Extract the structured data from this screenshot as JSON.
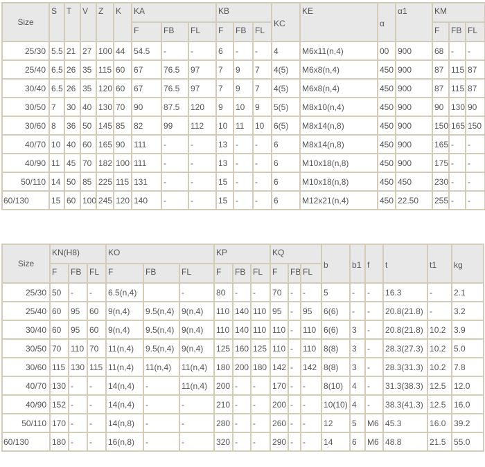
{
  "table1": {
    "header_top": [
      {
        "label": "Size",
        "rowspan": 2,
        "cls": "sz"
      },
      {
        "label": "S",
        "rowspan": 2
      },
      {
        "label": "T",
        "rowspan": 2
      },
      {
        "label": "V",
        "rowspan": 2
      },
      {
        "label": "Z",
        "rowspan": 2
      },
      {
        "label": "K",
        "rowspan": 2
      },
      {
        "label": "KA",
        "colspan": 3
      },
      {
        "label": "KB",
        "colspan": 3
      },
      {
        "label": "KC",
        "rowspan": 2,
        "cls": "mid"
      },
      {
        "label": "KE",
        "rowspan": 2
      },
      {
        "label": "α",
        "rowspan": 2,
        "cls": "mid"
      },
      {
        "label": "α1",
        "rowspan": 2
      },
      {
        "label": "KM",
        "colspan": 3
      }
    ],
    "header_sub": [
      "F",
      "FB",
      "FL",
      "F",
      "FB",
      "FL",
      "F",
      "FB",
      "FL"
    ],
    "rows": [
      [
        "25/30",
        "5.5",
        "21",
        "27",
        "100",
        "44",
        "54.5",
        "-",
        "-",
        "6",
        "-",
        "-",
        "4",
        "M6x11(n,4)",
        "00",
        "900",
        "68",
        "-",
        "-"
      ],
      [
        "25/40",
        "6.5",
        "26",
        "35",
        "115",
        "60",
        "67",
        "76.5",
        "97",
        "7",
        "9",
        "7",
        "4(5)",
        "M6x8(n,4)",
        "450",
        "900",
        "87",
        "115",
        "87"
      ],
      [
        "30/40",
        "6.5",
        "26",
        "35",
        "120",
        "60",
        "67",
        "76.5",
        "97",
        "7",
        "9",
        "7",
        "4(5)",
        "M6x8(n,4)",
        "450",
        "900",
        "87",
        "115",
        "87"
      ],
      [
        "30/50",
        "7",
        "30",
        "40",
        "130",
        "70",
        "90",
        "87.5",
        "120",
        "9",
        "10",
        "9",
        "5(5)",
        "M8x10(n,4)",
        "450",
        "900",
        "90",
        "130",
        "90"
      ],
      [
        "30/60",
        "8",
        "36",
        "50",
        "145",
        "85",
        "82",
        "99",
        "112",
        "10",
        "11",
        "10",
        "6(5)",
        "M8x14(n,8)",
        "450",
        "900",
        "150",
        "165",
        "150"
      ],
      [
        "40/70",
        "10",
        "40",
        "60",
        "165",
        "90",
        "111",
        "-",
        "-",
        "13",
        "-",
        "-",
        "6",
        "M8x14(n,8)",
        "450",
        "900",
        "165",
        "-",
        "-"
      ],
      [
        "40/90",
        "11",
        "45",
        "70",
        "182",
        "100",
        "111",
        "-",
        "-",
        "13",
        "-",
        "-",
        "6",
        "M10x18(n,8)",
        "450",
        "900",
        "175",
        "-",
        "-"
      ],
      [
        "50/110",
        "14",
        "50",
        "85",
        "225",
        "115",
        "131",
        "-",
        "-",
        "15",
        "-",
        "-",
        "6",
        "M10x18(n,8)",
        "450",
        "450",
        "230",
        "-",
        "-"
      ],
      [
        "60/130",
        "15",
        "60",
        "100",
        "245",
        "120",
        "140",
        "-",
        "-",
        "15",
        "-",
        "-",
        "6",
        "M12x21(n,4)",
        "450",
        "22.50",
        "255",
        "-",
        "-"
      ]
    ]
  },
  "table2": {
    "header_top": [
      {
        "label": "Size",
        "rowspan": 2,
        "cls": "sz"
      },
      {
        "label": "KN(H8)",
        "colspan": 3
      },
      {
        "label": "KO",
        "colspan": 3
      },
      {
        "label": "KP",
        "colspan": 3
      },
      {
        "label": "KQ",
        "colspan": 3
      },
      {
        "label": "b",
        "rowspan": 2,
        "cls": "mid"
      },
      {
        "label": "b1",
        "rowspan": 2,
        "cls": "mid"
      },
      {
        "label": "f",
        "rowspan": 2,
        "cls": "mid"
      },
      {
        "label": "t",
        "rowspan": 2,
        "cls": "mid"
      },
      {
        "label": "t1",
        "rowspan": 2,
        "cls": "mid"
      },
      {
        "label": "kg",
        "rowspan": 2,
        "cls": "mid"
      }
    ],
    "header_sub": [
      "F",
      "FB",
      "FL",
      "F",
      "FB",
      "FL",
      "F",
      "FB",
      "FL",
      "F",
      "FB",
      "FL"
    ],
    "rows": [
      [
        "25/30",
        "50",
        "-",
        "-",
        "6.5(n,4)",
        "",
        "-",
        "80",
        "-",
        "-",
        "70",
        "-",
        "-",
        "5",
        "-",
        "-",
        "16.3",
        "-",
        "2.1"
      ],
      [
        "25/40",
        "60",
        "95",
        "60",
        "9(n,4)",
        "9.5(n,4)",
        "9(n,4)",
        "110",
        "140",
        "110",
        "95",
        "-",
        "95",
        "6(6)",
        "-",
        "-",
        "20.8(21.8)",
        "-",
        "3.2"
      ],
      [
        "30/40",
        "60",
        "95",
        "60",
        "9(n,4)",
        "9.5(n,4)",
        "9(n,4)",
        "110",
        "140",
        "110",
        "110",
        "-",
        "110",
        "6(6)",
        "3",
        "-",
        "20.8(21.8)",
        "10.2",
        "3.9"
      ],
      [
        "30/50",
        "70",
        "110",
        "70",
        "11(n,4)",
        "9.5(n,4)",
        "9(n,4)",
        "125",
        "160",
        "125",
        "110",
        "-",
        "110",
        "8(8)",
        "3",
        "-",
        "28.3(27.3)",
        "10.2",
        "5.0"
      ],
      [
        "30/60",
        "115",
        "130",
        "115",
        "11(n,4)",
        "11(n,4)",
        "11(n,4)",
        "180",
        "200",
        "180",
        "142",
        "-",
        "142",
        "8(8)",
        "3",
        "-",
        "28.3(31.3)",
        "10.2",
        "7.8"
      ],
      [
        "40/70",
        "130",
        "-",
        "-",
        "14(n,4)",
        "-",
        "11(n,4)",
        "200",
        "-",
        "-",
        "170",
        "-",
        "-",
        "8(10)",
        "4",
        "-",
        "31.3(38.3)",
        "12.5",
        "12.0"
      ],
      [
        "40/90",
        "152",
        "-",
        "-",
        "14(n,4)",
        "-",
        "-",
        "210",
        "-",
        "-",
        "200",
        "-",
        "-",
        "10(10)",
        "4",
        "-",
        "38.3(41.3)",
        "12.5",
        "16.0"
      ],
      [
        "50/110",
        "170",
        "-",
        "-",
        "14(n,8)",
        "-",
        "-",
        "280",
        "-",
        "-",
        "260",
        "-",
        "-",
        "12",
        "5",
        "M6",
        "45.3",
        "16.0",
        "39.2"
      ],
      [
        "60/130",
        "180",
        "-",
        "-",
        "16(n,8)",
        "-",
        "-",
        "320",
        "-",
        "-",
        "290",
        "-",
        "-",
        "14",
        "6",
        "M6",
        "48.8",
        "21.5",
        "55.0"
      ]
    ]
  }
}
